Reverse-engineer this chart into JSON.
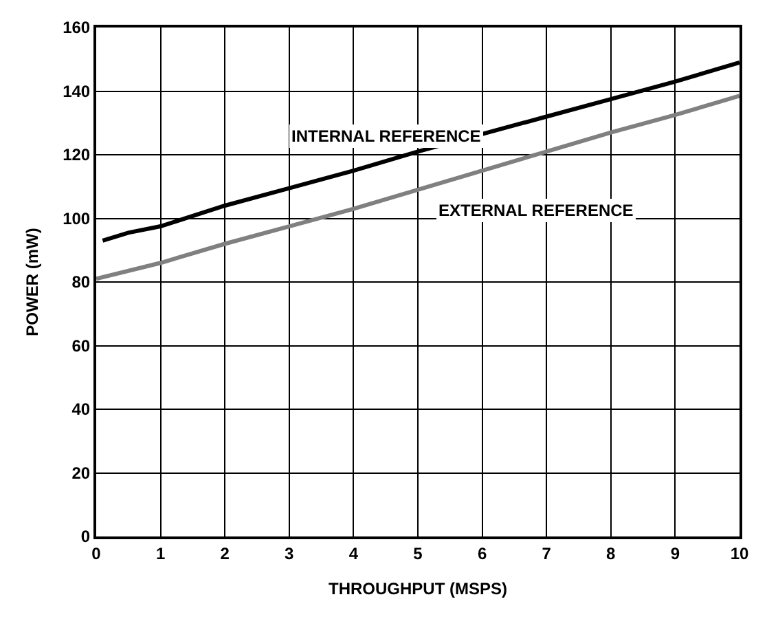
{
  "chart_data": {
    "type": "line",
    "xlabel": "THROUGHPUT (MSPS)",
    "ylabel": "POWER (mW)",
    "xlim": [
      0,
      10
    ],
    "xticks": [
      0,
      1,
      2,
      3,
      4,
      5,
      6,
      7,
      8,
      9,
      10
    ],
    "ylim": [
      0,
      160
    ],
    "yticks": [
      0,
      20,
      40,
      60,
      80,
      100,
      120,
      140,
      160
    ],
    "grid": true,
    "legend": false,
    "series": [
      {
        "name": "INTERNAL REFERENCE",
        "color": "#000000",
        "x": [
          0.1,
          0.5,
          1,
          2,
          3,
          4,
          5,
          6,
          7,
          8,
          9,
          10
        ],
        "values": [
          93,
          95.5,
          97.5,
          104,
          109.5,
          115,
          121,
          126.5,
          132,
          137.5,
          143,
          149
        ]
      },
      {
        "name": "EXTERNAL REFERENCE",
        "color": "#808080",
        "x": [
          0,
          1,
          2,
          3,
          4,
          5,
          6,
          7,
          8,
          9,
          10
        ],
        "values": [
          81,
          86,
          92,
          97.5,
          103,
          109,
          115,
          121,
          127,
          132.5,
          138.5
        ]
      }
    ]
  }
}
